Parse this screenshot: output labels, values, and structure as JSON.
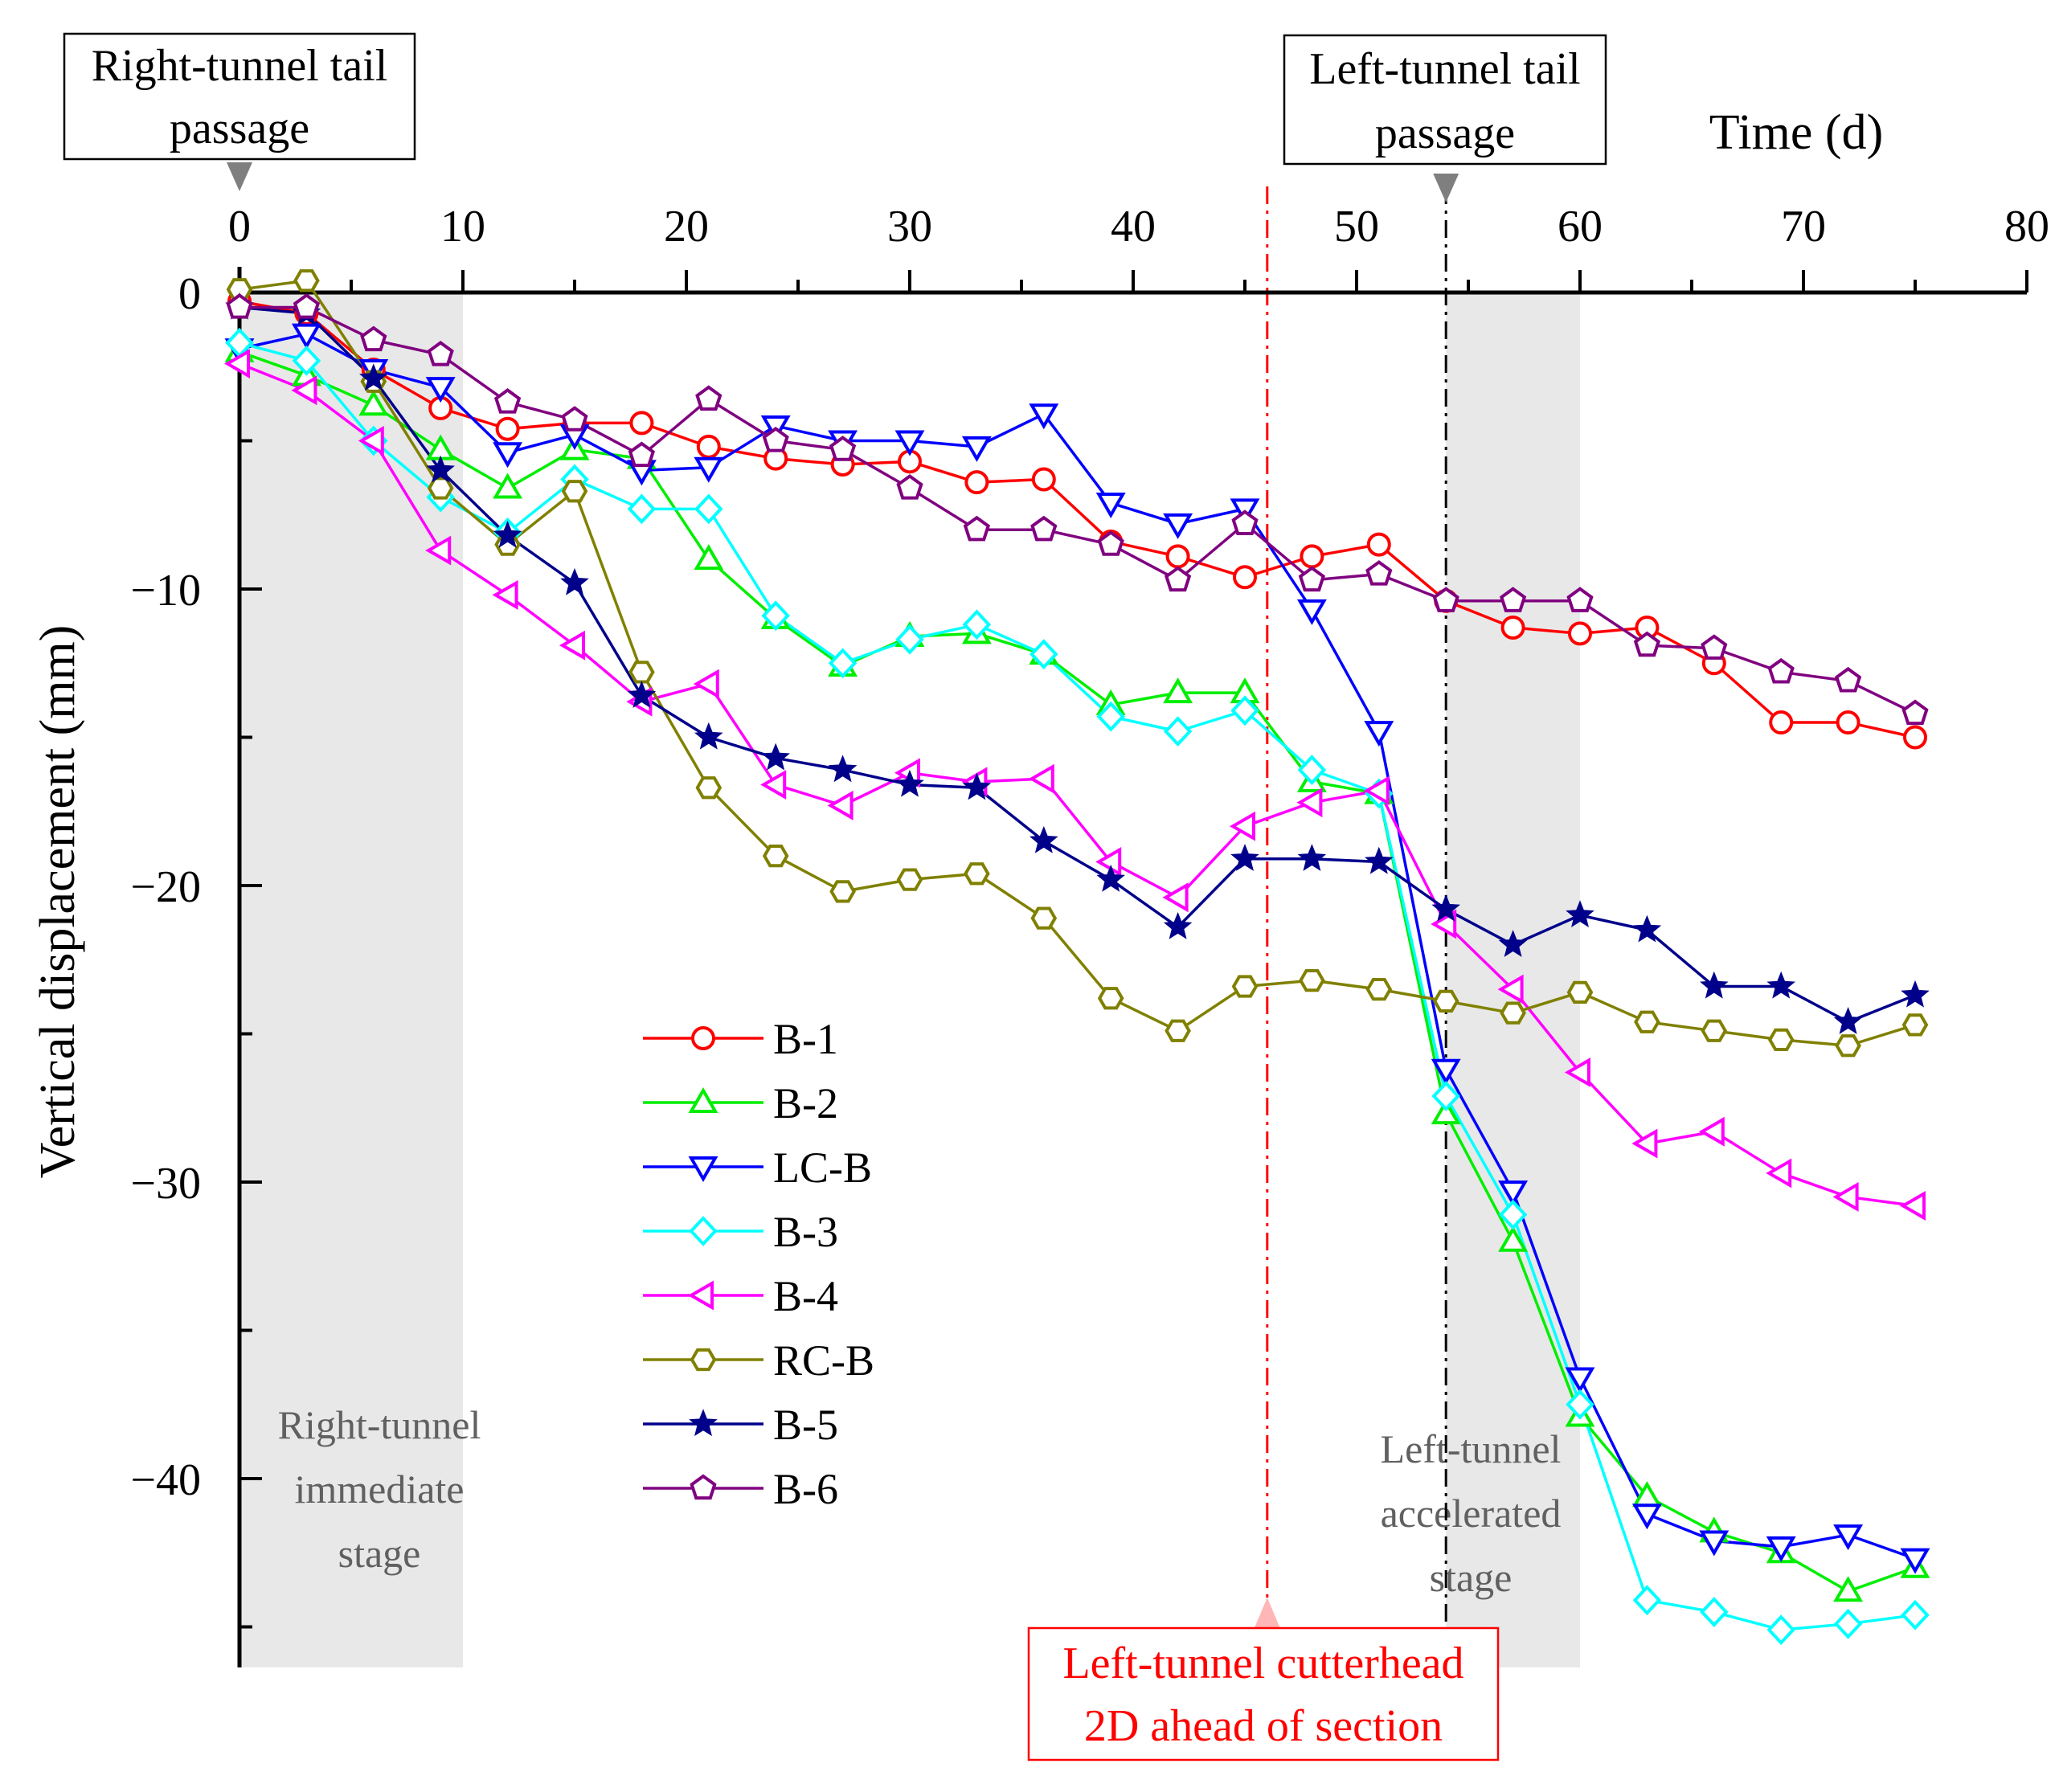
{
  "chart_data": {
    "type": "line",
    "title": "",
    "xlabel": "Time (d)",
    "ylabel": "Vertical displacement (mm)",
    "xlim": [
      0,
      80
    ],
    "ylim": [
      -46,
      0
    ],
    "xticks": [
      0,
      10,
      20,
      30,
      40,
      50,
      60,
      70,
      80
    ],
    "yticks": [
      0,
      -10,
      -20,
      -30,
      -40
    ],
    "ytick_labels": [
      "0",
      "−10",
      "−20",
      "−30",
      "−40"
    ],
    "grid": false,
    "legend_position": "center-left",
    "x": [
      0,
      3,
      6,
      9,
      12,
      15,
      18,
      21,
      24,
      27,
      30,
      33,
      36,
      39,
      42,
      45,
      48,
      51,
      54,
      57,
      60,
      63,
      66,
      69,
      72,
      75
    ],
    "series": [
      {
        "name": "B-1",
        "color": "#ff0000",
        "marker": "circle",
        "values": [
          -0.3,
          -0.7,
          -2.6,
          -3.9,
          -4.6,
          -4.4,
          -4.4,
          -5.2,
          -5.6,
          -5.8,
          -5.7,
          -6.4,
          -6.3,
          -8.4,
          -8.9,
          -9.6,
          -8.9,
          -8.5,
          -10.4,
          -11.3,
          -11.5,
          -11.3,
          -12.5,
          -14.5,
          -14.5,
          -15.0
        ]
      },
      {
        "name": "B-2",
        "color": "#00ee00",
        "marker": "triangle-up",
        "values": [
          -2.0,
          -2.8,
          -3.8,
          -5.3,
          -6.6,
          -5.3,
          -5.6,
          -9.0,
          -11.0,
          -12.6,
          -11.6,
          -11.5,
          -12.2,
          -13.9,
          -13.5,
          -13.5,
          -16.5,
          -16.9,
          -27.7,
          -32.0,
          -37.9,
          -40.6,
          -41.8,
          -42.5,
          -43.8,
          -43.0
        ]
      },
      {
        "name": "LC-B",
        "color": "#0000ff",
        "marker": "triangle-down",
        "values": [
          -1.9,
          -1.4,
          -2.6,
          -3.2,
          -5.4,
          -4.8,
          -6.0,
          -5.9,
          -4.5,
          -5.0,
          -5.0,
          -5.2,
          -4.1,
          -7.1,
          -7.8,
          -7.3,
          -10.7,
          -14.8,
          -26.2,
          -30.3,
          -36.6,
          -41.2,
          -42.1,
          -42.3,
          -41.9,
          -42.7
        ]
      },
      {
        "name": "B-3",
        "color": "#00ffff",
        "marker": "diamond",
        "values": [
          -1.7,
          -2.3,
          -5.0,
          -6.9,
          -8.1,
          -6.3,
          -7.3,
          -7.3,
          -10.9,
          -12.5,
          -11.7,
          -11.2,
          -12.2,
          -14.3,
          -14.8,
          -14.1,
          -16.1,
          -16.9,
          -27.1,
          -31.1,
          -37.5,
          -44.1,
          -44.5,
          -45.1,
          -44.9,
          -44.6
        ]
      },
      {
        "name": "B-4",
        "color": "#ff00ff",
        "marker": "triangle-left",
        "values": [
          -2.4,
          -3.3,
          -5.0,
          -8.7,
          -10.2,
          -11.9,
          -13.8,
          -13.2,
          -16.6,
          -17.3,
          -16.2,
          -16.5,
          -16.4,
          -19.2,
          -20.4,
          -18.0,
          -17.2,
          -16.8,
          -21.3,
          -23.5,
          -26.3,
          -28.7,
          -28.3,
          -29.7,
          -30.5,
          -30.8
        ]
      },
      {
        "name": "RC-B",
        "color": "#808000",
        "marker": "hexagon",
        "values": [
          0.1,
          0.4,
          -3.0,
          -6.6,
          -8.5,
          -6.7,
          -12.8,
          -16.7,
          -19.0,
          -20.2,
          -19.8,
          -19.6,
          -21.1,
          -23.8,
          -24.9,
          -23.4,
          -23.2,
          -23.5,
          -23.9,
          -24.3,
          -23.6,
          -24.6,
          -24.9,
          -25.2,
          -25.4,
          -24.7
        ]
      },
      {
        "name": "B-5",
        "color": "#00008b",
        "marker": "star",
        "values": [
          -0.5,
          -0.7,
          -2.9,
          -6.0,
          -8.2,
          -9.8,
          -13.6,
          -15.0,
          -15.7,
          -16.1,
          -16.6,
          -16.7,
          -18.5,
          -19.8,
          -21.4,
          -19.1,
          -19.1,
          -19.2,
          -20.8,
          -22.0,
          -21.0,
          -21.5,
          -23.4,
          -23.4,
          -24.6,
          -23.7
        ]
      },
      {
        "name": "B-6",
        "color": "#800080",
        "marker": "pentagon",
        "values": [
          -0.5,
          -0.5,
          -1.6,
          -2.1,
          -3.7,
          -4.3,
          -5.5,
          -3.6,
          -5.0,
          -5.3,
          -6.6,
          -8.0,
          -8.0,
          -8.5,
          -9.7,
          -7.8,
          -9.7,
          -9.5,
          -10.4,
          -10.4,
          -10.4,
          -11.9,
          -12.0,
          -12.8,
          -13.1,
          -14.2
        ]
      }
    ],
    "shaded_regions": [
      {
        "x_range": [
          0,
          10
        ],
        "label_lines": [
          "Right-tunnel",
          "immediate",
          "stage"
        ]
      },
      {
        "x_range": [
          54,
          60
        ],
        "label_lines": [
          "Left-tunnel",
          "accelerated",
          "stage"
        ]
      }
    ],
    "vertical_lines": [
      {
        "x": 46,
        "color": "#ff0000",
        "style": "dash-dot"
      },
      {
        "x": 54,
        "color": "#000000",
        "style": "dash-dot"
      }
    ],
    "annotations": [
      {
        "id": "right-tail",
        "x": 0,
        "lines": [
          "Right-tunnel tail",
          "passage"
        ]
      },
      {
        "id": "left-tail",
        "x": 54,
        "lines": [
          "Left-tunnel tail",
          "passage"
        ]
      },
      {
        "id": "cutterhead",
        "x": 46,
        "color": "#ff0000",
        "lines": [
          "Left-tunnel cutterhead",
          "2D ahead of section"
        ]
      }
    ]
  }
}
